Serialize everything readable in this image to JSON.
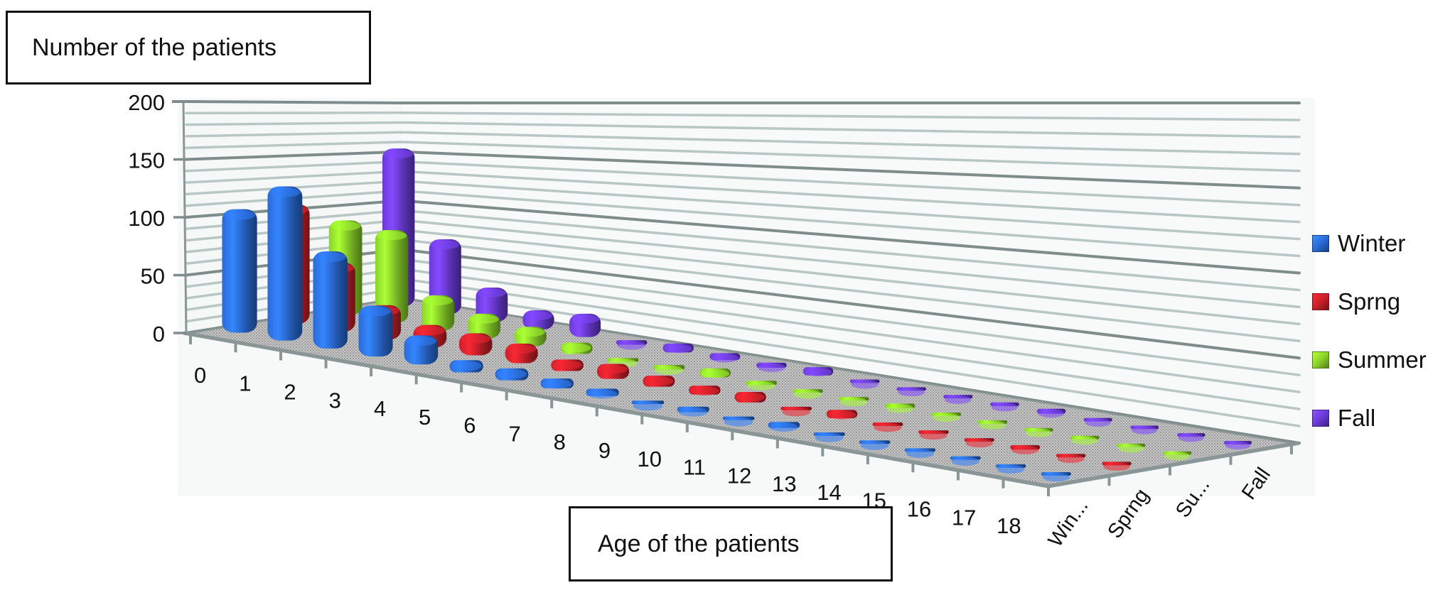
{
  "chart_data": {
    "type": "bar",
    "subtype": "3d-column",
    "ylabel": "Number of the patients",
    "xlabel": "Age of the patients",
    "ylim": [
      0,
      200
    ],
    "yticks": [
      "0",
      "50",
      "100",
      "150",
      "200"
    ],
    "ytick_values": [
      0,
      50,
      100,
      150,
      200
    ],
    "grid": true,
    "categories": [
      "0",
      "1",
      "2",
      "3",
      "4",
      "5",
      "6",
      "7",
      "8",
      "9",
      "10",
      "11",
      "12",
      "13",
      "14",
      "15",
      "16",
      "17",
      "18"
    ],
    "depth_labels": [
      "Win...",
      "Sprng",
      "Su...",
      "Fall"
    ],
    "legend_position": "right",
    "series": [
      {
        "name": "Winter",
        "color": "#2a6bd6",
        "values": [
          110,
          140,
          90,
          48,
          28,
          12,
          12,
          10,
          8,
          3,
          6,
          2,
          7,
          2,
          2,
          1,
          3,
          3,
          0.5
        ]
      },
      {
        "name": "Sprng",
        "color": "#c9202a",
        "values": [
          110,
          65,
          33,
          22,
          22,
          20,
          12,
          16,
          12,
          10,
          12,
          3,
          10,
          4,
          3,
          4,
          6,
          4,
          2
        ]
      },
      {
        "name": "Summer",
        "color": "#8ad32a",
        "values": [
          90,
          90,
          35,
          25,
          20,
          12,
          4,
          5,
          10,
          5,
          3,
          2,
          6,
          3,
          4,
          3,
          4,
          2,
          1
        ]
      },
      {
        "name": "Fall",
        "color": "#6a3bd6",
        "values": [
          155,
          75,
          35,
          20,
          25,
          5,
          10,
          8,
          6,
          10,
          2,
          4,
          4,
          5,
          7,
          4,
          3,
          2,
          1
        ]
      }
    ]
  }
}
